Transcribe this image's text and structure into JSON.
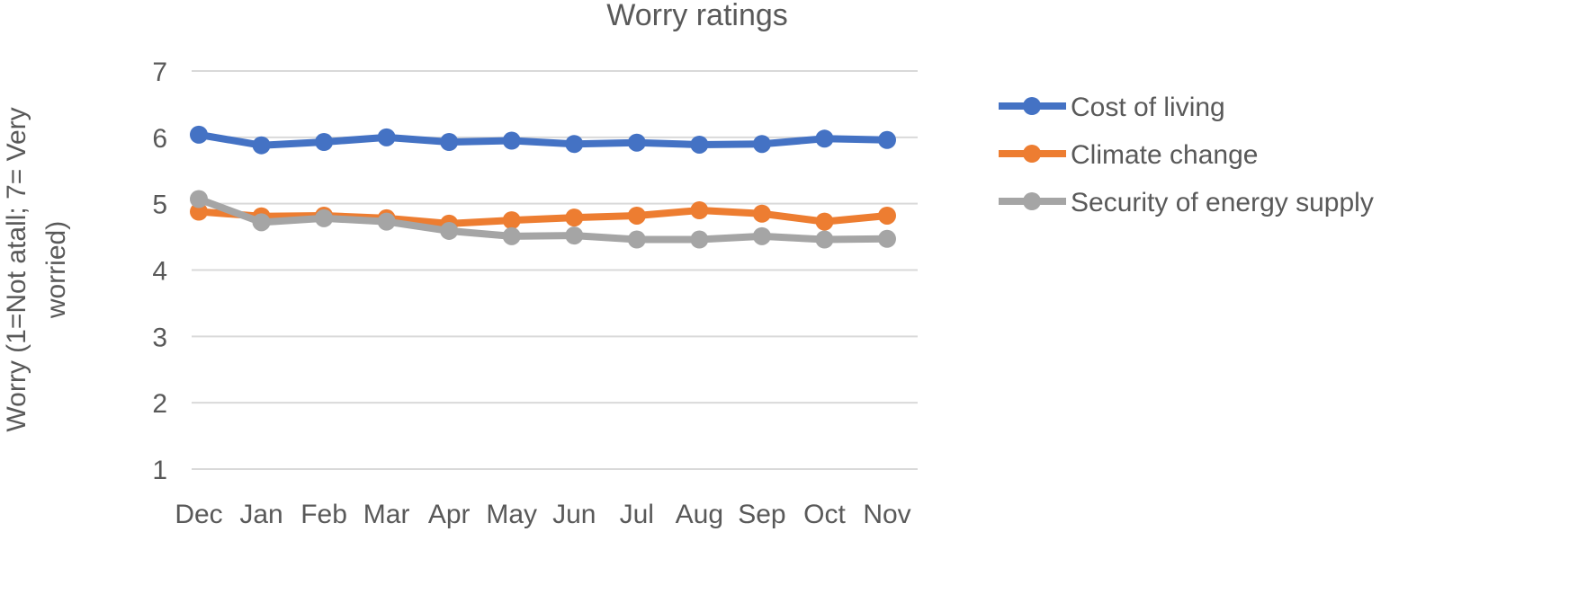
{
  "chart_data": {
    "type": "line",
    "title": "Worry ratings",
    "xlabel": "",
    "ylabel": "Worry (1=Not atall; 7= Very worried)",
    "ylabel_lines": [
      "Worry (1=Not atall; 7= Very",
      "worried)"
    ],
    "categories": [
      "Dec",
      "Jan",
      "Feb",
      "Mar",
      "Apr",
      "May",
      "Jun",
      "Jul",
      "Aug",
      "Sep",
      "Oct",
      "Nov"
    ],
    "ylim": [
      1,
      7
    ],
    "yticks": [
      1,
      2,
      3,
      4,
      5,
      6,
      7
    ],
    "grid": true,
    "legend_position": "right",
    "series": [
      {
        "name": "Cost of living",
        "color": "#4472C4",
        "values": [
          6.04,
          5.88,
          5.93,
          6.0,
          5.93,
          5.95,
          5.9,
          5.92,
          5.89,
          5.9,
          5.98,
          5.96
        ]
      },
      {
        "name": "Climate change",
        "color": "#ED7D31",
        "values": [
          4.88,
          4.81,
          4.82,
          4.78,
          4.7,
          4.75,
          4.79,
          4.82,
          4.9,
          4.85,
          4.73,
          4.82
        ]
      },
      {
        "name": "Security of energy supply",
        "color": "#A5A5A5",
        "values": [
          5.07,
          4.72,
          4.78,
          4.73,
          4.59,
          4.51,
          4.52,
          4.46,
          4.46,
          4.51,
          4.46,
          4.47
        ]
      }
    ]
  }
}
